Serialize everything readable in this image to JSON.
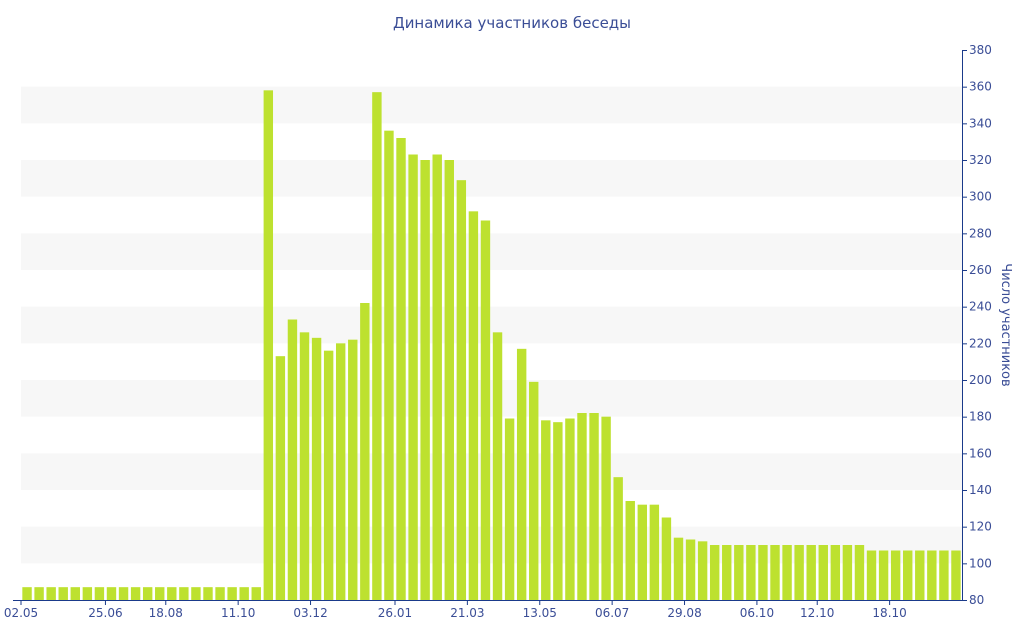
{
  "chart_data": {
    "type": "bar",
    "title": "Динамика участников беседы",
    "ylabel": "Число участников",
    "xlabel": "",
    "ylim": [
      80,
      380
    ],
    "y_ticks": [
      80,
      100,
      120,
      140,
      160,
      180,
      200,
      220,
      240,
      260,
      280,
      300,
      320,
      340,
      360,
      380
    ],
    "y_axis_position": "right",
    "x_tick_labels": [
      {
        "index": 0,
        "label": "02.05"
      },
      {
        "index": 7,
        "label": "25.06"
      },
      {
        "index": 12,
        "label": "18.08"
      },
      {
        "index": 18,
        "label": "11.10"
      },
      {
        "index": 24,
        "label": "03.12"
      },
      {
        "index": 31,
        "label": "26.01"
      },
      {
        "index": 37,
        "label": "21.03"
      },
      {
        "index": 43,
        "label": "13.05"
      },
      {
        "index": 49,
        "label": "06.07"
      },
      {
        "index": 55,
        "label": "29.08"
      },
      {
        "index": 61,
        "label": "06.10"
      },
      {
        "index": 66,
        "label": "12.10"
      },
      {
        "index": 72,
        "label": "18.10"
      }
    ],
    "values": [
      87,
      87,
      87,
      87,
      87,
      87,
      87,
      87,
      87,
      87,
      87,
      87,
      87,
      87,
      87,
      87,
      87,
      87,
      87,
      87,
      358,
      213,
      233,
      226,
      223,
      216,
      220,
      222,
      242,
      357,
      336,
      332,
      323,
      320,
      323,
      320,
      309,
      292,
      287,
      226,
      179,
      217,
      199,
      178,
      177,
      179,
      182,
      182,
      180,
      147,
      134,
      132,
      132,
      125,
      114,
      113,
      112,
      110,
      110,
      110,
      110,
      110,
      110,
      110,
      110,
      110,
      110,
      110,
      110,
      110,
      107,
      107,
      107,
      107,
      107,
      107,
      107,
      107
    ],
    "colors": {
      "bar": "#bde12f",
      "band": "#f7f7f7",
      "axis": "#1a3a8a",
      "text": "#3a4d96"
    },
    "grid": "alternating horizontal bands",
    "legend": "none"
  }
}
